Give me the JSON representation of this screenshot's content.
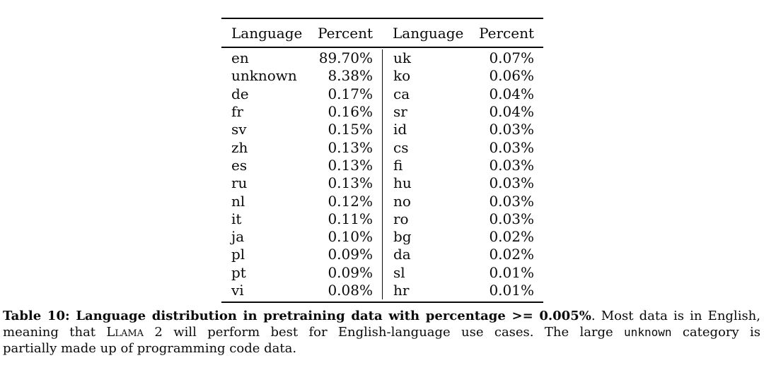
{
  "table": {
    "headers": [
      "Language",
      "Percent",
      "Language",
      "Percent"
    ],
    "rows": [
      [
        "en",
        "89.70%",
        "uk",
        "0.07%"
      ],
      [
        "unknown",
        "8.38%",
        "ko",
        "0.06%"
      ],
      [
        "de",
        "0.17%",
        "ca",
        "0.04%"
      ],
      [
        "fr",
        "0.16%",
        "sr",
        "0.04%"
      ],
      [
        "sv",
        "0.15%",
        "id",
        "0.03%"
      ],
      [
        "zh",
        "0.13%",
        "cs",
        "0.03%"
      ],
      [
        "es",
        "0.13%",
        "fi",
        "0.03%"
      ],
      [
        "ru",
        "0.13%",
        "hu",
        "0.03%"
      ],
      [
        "nl",
        "0.12%",
        "no",
        "0.03%"
      ],
      [
        "it",
        "0.11%",
        "ro",
        "0.03%"
      ],
      [
        "ja",
        "0.10%",
        "bg",
        "0.02%"
      ],
      [
        "pl",
        "0.09%",
        "da",
        "0.02%"
      ],
      [
        "pt",
        "0.09%",
        "sl",
        "0.01%"
      ],
      [
        "vi",
        "0.08%",
        "hr",
        "0.01%"
      ]
    ]
  },
  "caption": {
    "line1_bold": "Table 10: Language distribution in pretraining data with percentage >= 0.005%",
    "line1_rest": ". Most data is in English,",
    "line2_start": "meaning that ",
    "line2_llama": "Llama 2",
    "line2_mid": " will perform best for English-language use cases. The large ",
    "line2_unknown": "unknown",
    "line2_end": " category is",
    "line3": "partially made up of programming code data."
  }
}
